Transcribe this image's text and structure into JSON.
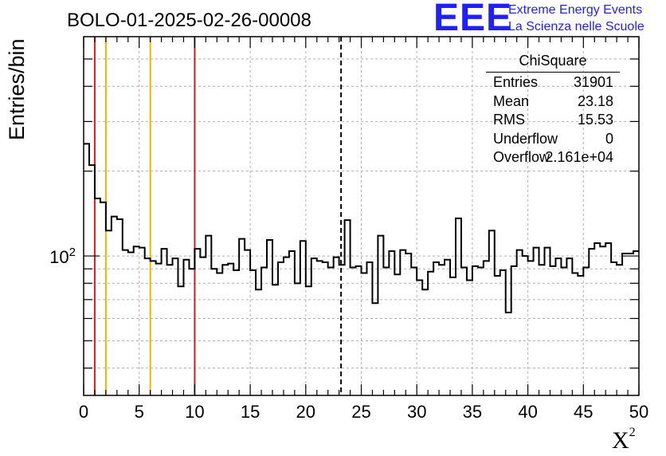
{
  "title": "BOLO-01-2025-02-26-00008",
  "logo": {
    "mark": "EEE",
    "line1": "Extreme Energy Events",
    "line2": "La Scienza nelle Scuole"
  },
  "stats_box": {
    "name": "ChiSquare",
    "rows": [
      {
        "key": "Entries",
        "value": "31901"
      },
      {
        "key": "Mean",
        "value": "23.18"
      },
      {
        "key": "RMS",
        "value": "15.53"
      },
      {
        "key": "Underflow",
        "value": "0"
      },
      {
        "key": "Overflow",
        "value": "2.161e+04"
      }
    ]
  },
  "chart_data": {
    "type": "histogram",
    "title": "BOLO-01-2025-02-26-00008",
    "xlabel": "X",
    "xlabel_superscript": "2",
    "ylabel": "Entries/bin",
    "xlim": [
      0,
      50
    ],
    "ylim": [
      32,
      600
    ],
    "ylog": true,
    "grid": true,
    "bin_width": 0.5,
    "x_ticks": [
      0,
      5,
      10,
      15,
      20,
      25,
      30,
      35,
      40,
      45,
      50
    ],
    "x_tick_labels": [
      "0",
      "5",
      "10",
      "15",
      "20",
      "25",
      "30",
      "35",
      "40",
      "45",
      "50"
    ],
    "y_tick_label": {
      "base": "10",
      "exp": "2",
      "value": 100
    },
    "bin_counts": [
      250,
      210,
      160,
      155,
      123,
      138,
      135,
      105,
      103,
      108,
      107,
      98,
      96,
      94,
      106,
      93,
      98,
      78,
      97,
      90,
      106,
      99,
      118,
      90,
      87,
      93,
      94,
      89,
      115,
      105,
      89,
      76,
      91,
      114,
      79,
      95,
      99,
      104,
      80,
      113,
      78,
      98,
      96,
      95,
      91,
      99,
      93,
      134,
      91,
      92,
      87,
      95,
      68,
      118,
      91,
      104,
      86,
      105,
      102,
      91,
      82,
      76,
      88,
      95,
      93,
      97,
      84,
      136,
      91,
      82,
      92,
      91,
      96,
      123,
      85,
      89,
      63,
      92,
      105,
      100,
      96,
      107,
      93,
      107,
      92,
      98,
      91,
      98,
      87,
      85,
      91,
      106,
      111,
      108,
      111,
      95,
      93,
      102,
      102,
      104
    ],
    "vertical_lines": [
      {
        "x": 1,
        "color": "#e31a1c",
        "style": "solid"
      },
      {
        "x": 2,
        "color": "#f0b400",
        "style": "solid"
      },
      {
        "x": 6,
        "color": "#f0b400",
        "style": "solid"
      },
      {
        "x": 10,
        "color": "#e31a1c",
        "style": "solid"
      },
      {
        "x": 23.18,
        "color": "#000000",
        "style": "dashed"
      }
    ]
  }
}
